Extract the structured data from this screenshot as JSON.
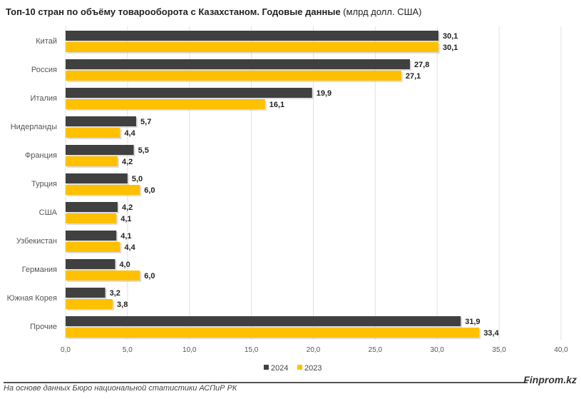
{
  "title": {
    "bold": "Топ-10 стран по объёму товарооборота с Казахстаном. Годовые данные",
    "normal": " (млрд долл. США)"
  },
  "footer": {
    "source": "На основе данных Бюро национальной статистики АСПиР РК",
    "brand": "Finprom.kz"
  },
  "chart_data": {
    "type": "bar",
    "orientation": "horizontal",
    "title": "Топ-10 стран по объёму товарооборота с Казахстаном. Годовые данные (млрд долл. США)",
    "categories": [
      "Китай",
      "Россия",
      "Италия",
      "Нидерланды",
      "Франция",
      "Турция",
      "США",
      "Узбекистан",
      "Германия",
      "Южная Корея",
      "Прочие"
    ],
    "series": [
      {
        "name": "2024",
        "color": "#404040",
        "values": [
          30.1,
          27.8,
          19.9,
          5.7,
          5.5,
          5.0,
          4.2,
          4.1,
          4.0,
          3.2,
          31.9
        ]
      },
      {
        "name": "2023",
        "color": "#FFC000",
        "values": [
          30.1,
          27.1,
          16.1,
          4.4,
          4.2,
          6.0,
          4.1,
          4.4,
          6.0,
          3.8,
          33.4
        ]
      }
    ],
    "xlim": [
      0,
      40
    ],
    "xticks": [
      "0,0",
      "5,0",
      "10,0",
      "15,0",
      "20,0",
      "25,0",
      "30,0",
      "35,0",
      "40,0"
    ],
    "grid": true,
    "legend": "bottom"
  }
}
